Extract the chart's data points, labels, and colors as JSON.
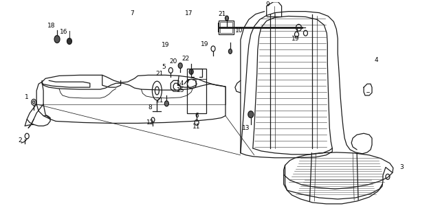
{
  "bg_color": "#ffffff",
  "line_color": "#1a1a1a",
  "fig_width": 6.4,
  "fig_height": 3.16,
  "dpi": 100
}
